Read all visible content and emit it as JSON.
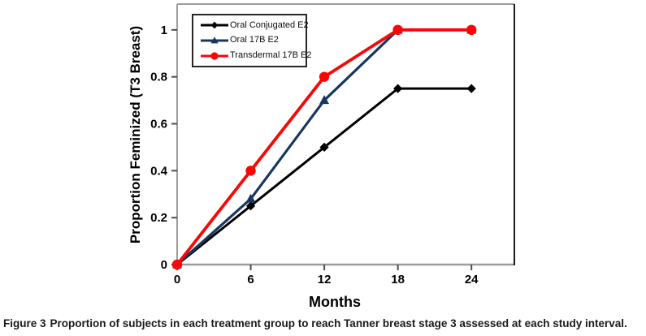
{
  "figure": {
    "caption_label": "Figure 3",
    "caption_text": "Proportion of subjects in each treatment group to reach Tanner breast stage 3 assessed at each study interval."
  },
  "chart_data": {
    "type": "line",
    "title": "",
    "xlabel": "Months",
    "ylabel": "Proportion Feminized (T3 Breast)",
    "x": [
      0,
      6,
      12,
      18,
      24
    ],
    "series": [
      {
        "name": "Oral Conjugated E2",
        "color": "#000000",
        "marker": "diamond",
        "values": [
          0,
          0.25,
          0.5,
          0.75,
          0.75
        ]
      },
      {
        "name": "Oral 17B E2",
        "color": "#17375E",
        "marker": "triangle",
        "values": [
          0,
          0.28,
          0.7,
          1,
          1
        ]
      },
      {
        "name": "Transdermal 17B E2",
        "color": "#F90606",
        "marker": "circle",
        "values": [
          0,
          0.4,
          0.8,
          1,
          1
        ]
      }
    ],
    "x_tick_labels": [
      "0",
      "6",
      "12",
      "18",
      "24"
    ],
    "x_tick_values": [
      0,
      6,
      12,
      18,
      24
    ],
    "y_tick_labels": [
      "0",
      "0.2",
      "0.4",
      "0.6",
      "0.8",
      "1"
    ],
    "y_tick_values": [
      0,
      0.2,
      0.4,
      0.6,
      0.8,
      1
    ],
    "xlim": [
      0,
      27.5
    ],
    "ylim": [
      0,
      1.11
    ],
    "grid": false,
    "legend_position": "top-left-inside",
    "axis_color": "#9c9c9c",
    "plot_right_border_color": "#1a1a1a",
    "tick_color": "#4d4d4d"
  }
}
